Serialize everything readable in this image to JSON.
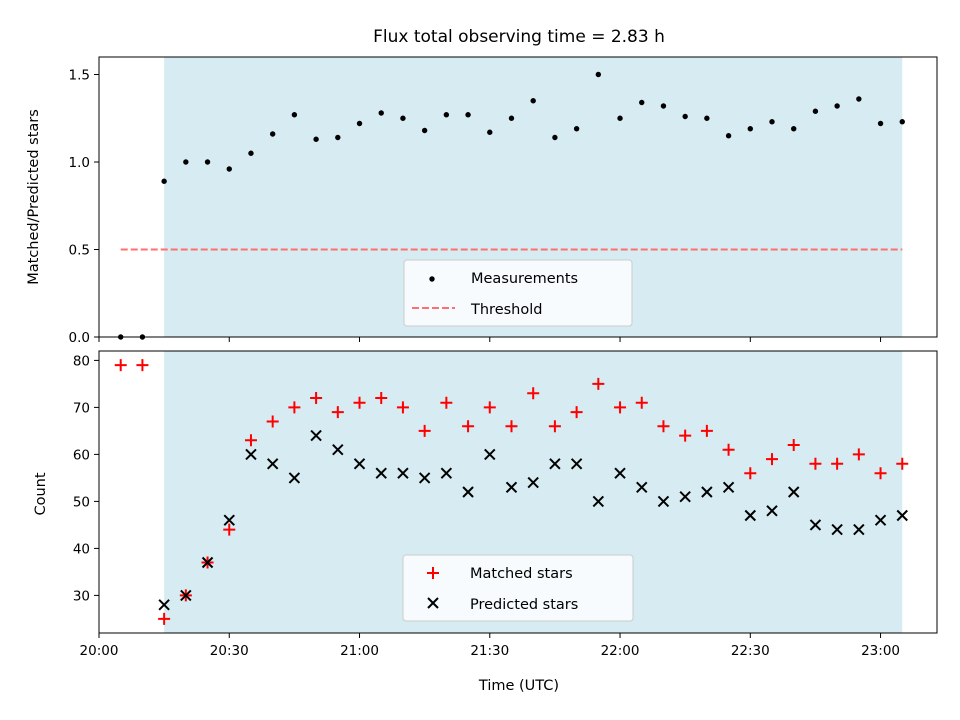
{
  "chart_data": [
    {
      "type": "scatter",
      "title": "Flux total observing time = 2.83 h",
      "ylabel": "Matched/Predicted stars",
      "xlabel": "",
      "xlim": [
        "20:00",
        "23:13"
      ],
      "ylim": [
        0,
        1.6
      ],
      "yticks": [
        {
          "v": 0,
          "label": "0.0"
        },
        {
          "v": 0.5,
          "label": "0.5"
        },
        {
          "v": 1.0,
          "label": "1.0"
        },
        {
          "v": 1.5,
          "label": "1.5"
        }
      ],
      "shaded_interval": [
        "20:15",
        "23:05"
      ],
      "shade_color": "#add8e6",
      "legend_placement": "lower center",
      "series": [
        {
          "name": "Measurements",
          "marker": "dot",
          "color": "#000000",
          "x": [
            "20:05",
            "20:10",
            "20:15",
            "20:20",
            "20:25",
            "20:30",
            "20:35",
            "20:40",
            "20:45",
            "20:50",
            "20:55",
            "21:00",
            "21:05",
            "21:10",
            "21:15",
            "21:20",
            "21:25",
            "21:30",
            "21:35",
            "21:40",
            "21:45",
            "21:50",
            "21:55",
            "22:00",
            "22:05",
            "22:10",
            "22:15",
            "22:20",
            "22:25",
            "22:30",
            "22:35",
            "22:40",
            "22:45",
            "22:50",
            "22:55",
            "23:00",
            "23:05"
          ],
          "y": [
            0.0,
            0.0,
            0.89,
            1.0,
            1.0,
            0.96,
            1.05,
            1.16,
            1.27,
            1.13,
            1.14,
            1.22,
            1.28,
            1.25,
            1.18,
            1.27,
            1.27,
            1.17,
            1.25,
            1.35,
            1.14,
            1.19,
            1.5,
            1.25,
            1.34,
            1.32,
            1.26,
            1.25,
            1.15,
            1.19,
            1.23,
            1.19,
            1.29,
            1.32,
            1.36,
            1.22,
            1.23
          ]
        },
        {
          "name": "Threshold",
          "style": "dashed",
          "color": "#ff6f6f",
          "x": [
            "20:05",
            "23:05"
          ],
          "y": [
            0.5,
            0.5
          ]
        }
      ]
    },
    {
      "type": "scatter",
      "title": "",
      "ylabel": "Count",
      "xlabel": "Time (UTC)",
      "xlim": [
        "20:00",
        "23:13"
      ],
      "ylim": [
        22,
        82
      ],
      "yticks": [
        {
          "v": 30,
          "label": "30"
        },
        {
          "v": 40,
          "label": "40"
        },
        {
          "v": 50,
          "label": "50"
        },
        {
          "v": 60,
          "label": "60"
        },
        {
          "v": 70,
          "label": "70"
        },
        {
          "v": 80,
          "label": "80"
        }
      ],
      "xticks": [
        {
          "v": "20:00",
          "label": "20:00"
        },
        {
          "v": "20:30",
          "label": "20:30"
        },
        {
          "v": "21:00",
          "label": "21:00"
        },
        {
          "v": "21:30",
          "label": "21:30"
        },
        {
          "v": "22:00",
          "label": "22:00"
        },
        {
          "v": "22:30",
          "label": "22:30"
        },
        {
          "v": "23:00",
          "label": "23:00"
        }
      ],
      "shaded_interval": [
        "20:15",
        "23:05"
      ],
      "shade_color": "#add8e6",
      "legend_placement": "lower center",
      "series": [
        {
          "name": "Matched stars",
          "marker": "plus",
          "color": "#ff0000",
          "x": [
            "20:05",
            "20:10",
            "20:15",
            "20:20",
            "20:25",
            "20:30",
            "20:35",
            "20:40",
            "20:45",
            "20:50",
            "20:55",
            "21:00",
            "21:05",
            "21:10",
            "21:15",
            "21:20",
            "21:25",
            "21:30",
            "21:35",
            "21:40",
            "21:45",
            "21:50",
            "21:55",
            "22:00",
            "22:05",
            "22:10",
            "22:15",
            "22:20",
            "22:25",
            "22:30",
            "22:35",
            "22:40",
            "22:45",
            "22:50",
            "22:55",
            "23:00",
            "23:05"
          ],
          "y": [
            79,
            79,
            25,
            30,
            37,
            44,
            63,
            67,
            70,
            72,
            69,
            71,
            72,
            70,
            65,
            71,
            66,
            70,
            66,
            73,
            66,
            69,
            75,
            70,
            71,
            66,
            64,
            65,
            61,
            56,
            59,
            62,
            58,
            58,
            60,
            56,
            58
          ]
        },
        {
          "name": "Predicted stars",
          "marker": "x",
          "color": "#000000",
          "x": [
            "20:15",
            "20:20",
            "20:25",
            "20:30",
            "20:35",
            "20:40",
            "20:45",
            "20:50",
            "20:55",
            "21:00",
            "21:05",
            "21:10",
            "21:15",
            "21:20",
            "21:25",
            "21:30",
            "21:35",
            "21:40",
            "21:45",
            "21:50",
            "21:55",
            "22:00",
            "22:05",
            "22:10",
            "22:15",
            "22:20",
            "22:25",
            "22:30",
            "22:35",
            "22:40",
            "22:45",
            "22:50",
            "22:55",
            "23:00",
            "23:05"
          ],
          "y": [
            28,
            30,
            37,
            46,
            60,
            58,
            55,
            64,
            61,
            58,
            56,
            56,
            55,
            56,
            52,
            60,
            53,
            54,
            58,
            58,
            50,
            56,
            53,
            50,
            51,
            52,
            53,
            47,
            48,
            52,
            45,
            44,
            44,
            46,
            47
          ]
        }
      ]
    }
  ]
}
